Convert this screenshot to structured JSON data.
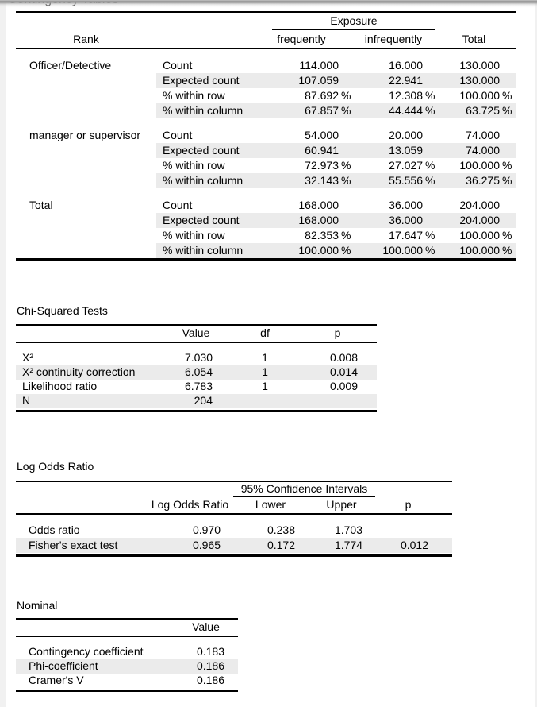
{
  "page": {
    "title": "Contingency Tables"
  },
  "colors": {
    "stripe": "#ebebeb",
    "table_border": "#000000",
    "panel_edge": "#f1f1f1",
    "top_shadow": "#8f8f8f",
    "title_text": "#3a3a3a"
  },
  "contingency_table": {
    "row_group_header": "Rank",
    "col_group_header": "Exposure",
    "col_headers": [
      "frequently",
      "infrequently",
      "Total"
    ],
    "groups": [
      {
        "label": "Officer/Detective",
        "rows": [
          {
            "stat": "Count",
            "values": [
              "114.000",
              "16.000",
              "130.000"
            ]
          },
          {
            "stat": "Expected count",
            "values": [
              "107.059",
              "22.941",
              "130.000"
            ]
          },
          {
            "stat": "% within row",
            "values": [
              "87.692 %",
              "12.308 %",
              "100.000 %"
            ]
          },
          {
            "stat": "% within column",
            "values": [
              "67.857 %",
              "44.444 %",
              "63.725 %"
            ]
          }
        ]
      },
      {
        "label": "manager or supervisor",
        "rows": [
          {
            "stat": "Count",
            "values": [
              "54.000",
              "20.000",
              "74.000"
            ]
          },
          {
            "stat": "Expected count",
            "values": [
              "60.941",
              "13.059",
              "74.000"
            ]
          },
          {
            "stat": "% within row",
            "values": [
              "72.973 %",
              "27.027 %",
              "100.000 %"
            ]
          },
          {
            "stat": "% within column",
            "values": [
              "32.143 %",
              "55.556 %",
              "36.275 %"
            ]
          }
        ]
      },
      {
        "label": "Total",
        "rows": [
          {
            "stat": "Count",
            "values": [
              "168.000",
              "36.000",
              "204.000"
            ]
          },
          {
            "stat": "Expected count",
            "values": [
              "168.000",
              "36.000",
              "204.000"
            ]
          },
          {
            "stat": "% within row",
            "values": [
              "82.353 %",
              "17.647 %",
              "100.000 %"
            ]
          },
          {
            "stat": "% within column",
            "values": [
              "100.000 %",
              "100.000 %",
              "100.000 %"
            ]
          }
        ]
      }
    ]
  },
  "chi_squared": {
    "title": "Chi-Squared Tests",
    "col_headers": [
      "Value",
      "df",
      "p"
    ],
    "rows": [
      {
        "label": "X²",
        "value": "7.030",
        "df": "1",
        "p": "0.008"
      },
      {
        "label": "X² continuity correction",
        "value": "6.054",
        "df": "1",
        "p": "0.014"
      },
      {
        "label": "Likelihood ratio",
        "value": "6.783",
        "df": "1",
        "p": "0.009"
      },
      {
        "label": "N",
        "value": "204",
        "df": "",
        "p": ""
      }
    ]
  },
  "log_odds": {
    "title": "Log Odds Ratio",
    "ci_header": "95% Confidence Intervals",
    "col_headers": [
      "Log Odds Ratio",
      "Lower",
      "Upper",
      "p"
    ],
    "rows": [
      {
        "label": "Odds ratio",
        "estimate": "0.970",
        "lower": "0.238",
        "upper": "1.703",
        "p": ""
      },
      {
        "label": "Fisher's exact test",
        "estimate": "0.965",
        "lower": "0.172",
        "upper": "1.774",
        "p": "0.012"
      }
    ]
  },
  "nominal": {
    "title": "Nominal",
    "col_headers": [
      "Value"
    ],
    "rows": [
      {
        "label": "Contingency coefficient",
        "value": "0.183"
      },
      {
        "label": "Phi-coefficient",
        "value": "0.186"
      },
      {
        "label": "Cramer's V",
        "value": "0.186"
      }
    ]
  }
}
